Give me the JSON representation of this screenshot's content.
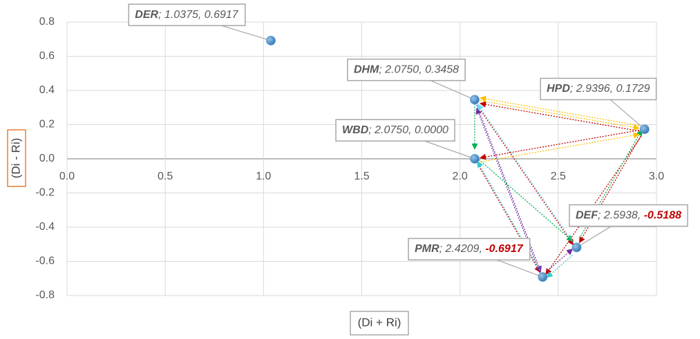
{
  "chart_data": {
    "type": "scatter",
    "x_label": "(Di + Ri)",
    "y_label": "(Di - Ri)",
    "x": [
      1.0375,
      2.075,
      2.075,
      2.9396,
      2.5938,
      2.4209
    ],
    "values": [
      0.6917,
      0.3458,
      0,
      0.1729,
      -0.5188,
      -0.6917
    ],
    "value_labels": [
      "DER; 1.0375, 0.6917",
      "DHM; 2.0750, 0.3458",
      "WBD; 2.0750, 0.0000",
      "HPD; 2.9396, 0.1729",
      "DEF; 2.5938, -0.5188",
      "PMR; 2.4209, -0.6917"
    ],
    "color": "#5b9bd5",
    "negative_label_color": "#c00000",
    "xlim": [
      0,
      3.0
    ],
    "ylim": [
      -0.8,
      0.8
    ],
    "xticks": [
      {
        "value": 0,
        "label": "0.0"
      },
      0.5,
      {
        "value": 1,
        "label": "1.0"
      },
      1.5,
      {
        "value": 2,
        "label": "2.0"
      },
      2.5,
      {
        "value": 3,
        "label": "3.0"
      }
    ],
    "yticks": [
      -0.8,
      -0.6,
      -0.4,
      -0.2,
      {
        "value": 0,
        "label": "0.0"
      },
      0.2,
      0.4,
      0.6,
      0.8
    ],
    "grid": true
  }
}
